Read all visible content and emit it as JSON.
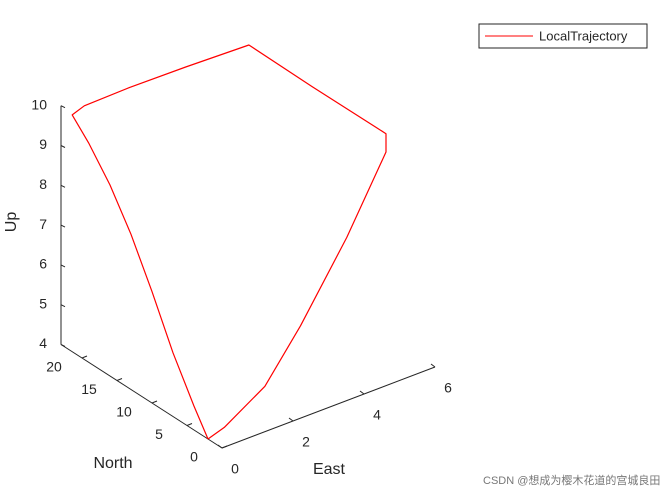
{
  "chart_data": {
    "type": "line3d",
    "xlabel": "East",
    "ylabel": "North",
    "zlabel": "Up",
    "xlim": [
      0,
      6
    ],
    "ylim": [
      0,
      23
    ],
    "zlim": [
      4,
      10
    ],
    "xticks": [
      0,
      2,
      4,
      6
    ],
    "yticks": [
      0,
      5,
      10,
      15,
      20
    ],
    "zticks": [
      4,
      5,
      6,
      7,
      8,
      9,
      10
    ],
    "legend": "top-right",
    "series": [
      {
        "name": "LocalTrajectory",
        "color": "#ff0000",
        "x": [
          0,
          0,
          0,
          0,
          0,
          0,
          0,
          0,
          0.3,
          1.5,
          3,
          4.7,
          5.3,
          6,
          5.9,
          4.5,
          3,
          1.8,
          0.5,
          0
        ],
        "y": [
          2,
          4,
          7,
          10,
          13,
          16,
          19,
          21.4,
          21.2,
          20.8,
          20.4,
          20,
          14,
          7,
          6.5,
          5,
          4,
          3,
          2.2,
          2
        ],
        "z": [
          4,
          4.6,
          5.6,
          6.8,
          7.9,
          8.8,
          9.5,
          9.95,
          10.1,
          10.2,
          10.25,
          10.27,
          9.7,
          9.07,
          8.7,
          7.2,
          5.6,
          4.6,
          4.1,
          4
        ]
      }
    ]
  },
  "watermark": "CSDN @想成为樱木花道的宫城良田"
}
